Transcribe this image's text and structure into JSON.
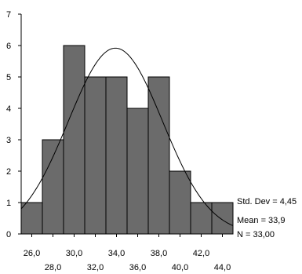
{
  "chart_data": {
    "type": "bar",
    "title": "",
    "xlabel": "",
    "ylabel": "",
    "bins": [
      {
        "from": 25.0,
        "to": 27.0,
        "count": 1
      },
      {
        "from": 27.0,
        "to": 29.0,
        "count": 3
      },
      {
        "from": 29.0,
        "to": 31.0,
        "count": 6
      },
      {
        "from": 31.0,
        "to": 33.0,
        "count": 5
      },
      {
        "from": 33.0,
        "to": 35.0,
        "count": 5
      },
      {
        "from": 35.0,
        "to": 37.0,
        "count": 4
      },
      {
        "from": 37.0,
        "to": 39.0,
        "count": 5
      },
      {
        "from": 39.0,
        "to": 41.0,
        "count": 2
      },
      {
        "from": 41.0,
        "to": 43.0,
        "count": 1
      },
      {
        "from": 43.0,
        "to": 45.0,
        "count": 1
      }
    ],
    "xlim": [
      25.0,
      45.0
    ],
    "ylim": [
      0,
      7
    ],
    "yticks": [
      0,
      1,
      2,
      3,
      4,
      5,
      6,
      7
    ],
    "xticks_upper": [
      {
        "value": 26.0,
        "label": "26,0"
      },
      {
        "value": 30.0,
        "label": "30,0"
      },
      {
        "value": 34.0,
        "label": "34,0"
      },
      {
        "value": 38.0,
        "label": "38,0"
      },
      {
        "value": 42.0,
        "label": "42,0"
      }
    ],
    "xticks_lower": [
      {
        "value": 28.0,
        "label": "28,0"
      },
      {
        "value": 32.0,
        "label": "32,0"
      },
      {
        "value": 36.0,
        "label": "36,0"
      },
      {
        "value": 40.0,
        "label": "40,0"
      },
      {
        "value": 44.0,
        "label": "44,0"
      }
    ],
    "normal_curve": {
      "mean": 33.9,
      "std_dev": 4.45,
      "n": 33.0,
      "bin_width": 2.0
    },
    "stats": {
      "std_dev_text": "Std. Dev = 4,45",
      "mean_text": "Mean = 33,9",
      "n_text": "N = 33,00"
    },
    "colors": {
      "bar_fill": "#6b6b6b",
      "bar_stroke": "#000000",
      "curve": "#000000",
      "axis": "#000000"
    }
  }
}
